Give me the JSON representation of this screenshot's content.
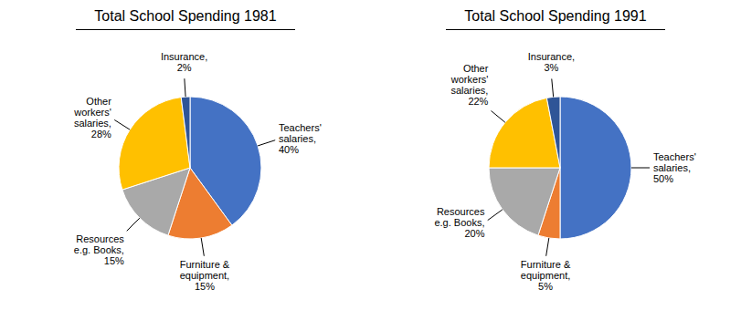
{
  "chart_data": [
    {
      "type": "pie",
      "title": "Total School Spending 1981",
      "categories": [
        "Teachers'\nsalaries,\n40%",
        "Furniture &\nequipment,\n15%",
        "Resources\ne.g. Books,\n15%",
        "Other\nworkers'\nsalaries,\n28%",
        "Insurance,\n2%"
      ],
      "values": [
        40,
        15,
        15,
        28,
        2
      ],
      "colors": [
        "#4472C4",
        "#ED7D31",
        "#A9A9A9",
        "#FFC000",
        "#2F5597"
      ]
    },
    {
      "type": "pie",
      "title": "Total School Spending 1991",
      "categories": [
        "Teachers'\nsalaries,\n50%",
        "Furniture &\nequipment,\n5%",
        "Resources\ne.g. Books,\n20%",
        "Other\nworkers'\nsalaries,\n22%",
        "Insurance,\n3%"
      ],
      "values": [
        50,
        5,
        20,
        22,
        3
      ],
      "colors": [
        "#4472C4",
        "#ED7D31",
        "#A9A9A9",
        "#FFC000",
        "#2F5597"
      ]
    }
  ]
}
